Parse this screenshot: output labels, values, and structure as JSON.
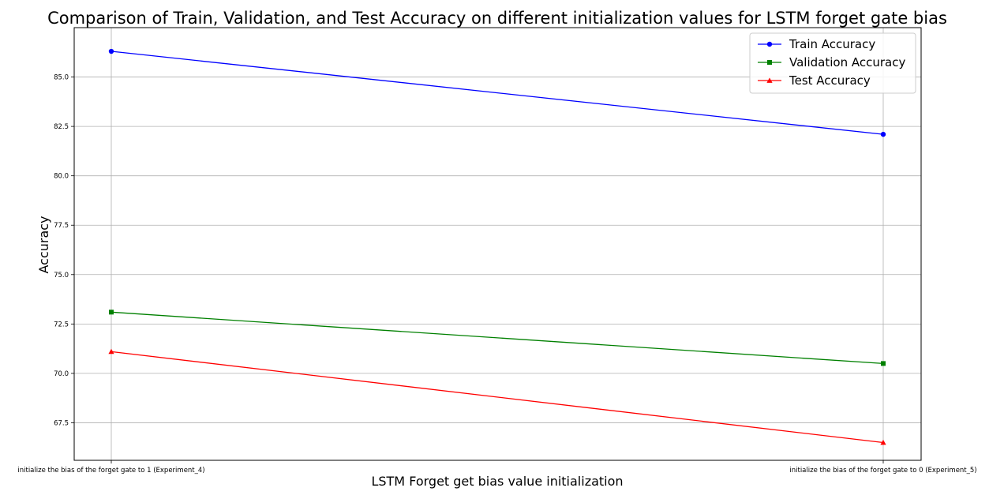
{
  "chart_data": {
    "type": "line",
    "title": "Comparison of Train, Validation, and Test Accuracy on different initialization values for LSTM forget gate bias",
    "xlabel": "LSTM Forget get bias value initialization",
    "ylabel": "Accuracy",
    "categories": [
      "initialize the bias of the forget gate to 1 (Experiment_4)",
      "initialize the bias of the forget gate to 0 (Experiment_5)"
    ],
    "ylim": [
      65.6,
      87.5
    ],
    "yticks": [
      67.5,
      70.0,
      72.5,
      75.0,
      77.5,
      80.0,
      82.5,
      85.0
    ],
    "ytick_labels": [
      "67.5",
      "70.0",
      "72.5",
      "75.0",
      "77.5",
      "80.0",
      "82.5",
      "85.0"
    ],
    "grid": true,
    "legend_position": "top-right",
    "series": [
      {
        "name": "Train Accuracy",
        "values": [
          86.3,
          82.1
        ],
        "color": "#0000ff",
        "marker": "circle"
      },
      {
        "name": "Validation Accuracy",
        "values": [
          73.1,
          70.5
        ],
        "color": "#008000",
        "marker": "square"
      },
      {
        "name": "Test Accuracy",
        "values": [
          71.1,
          66.5
        ],
        "color": "#ff0000",
        "marker": "triangle"
      }
    ]
  }
}
